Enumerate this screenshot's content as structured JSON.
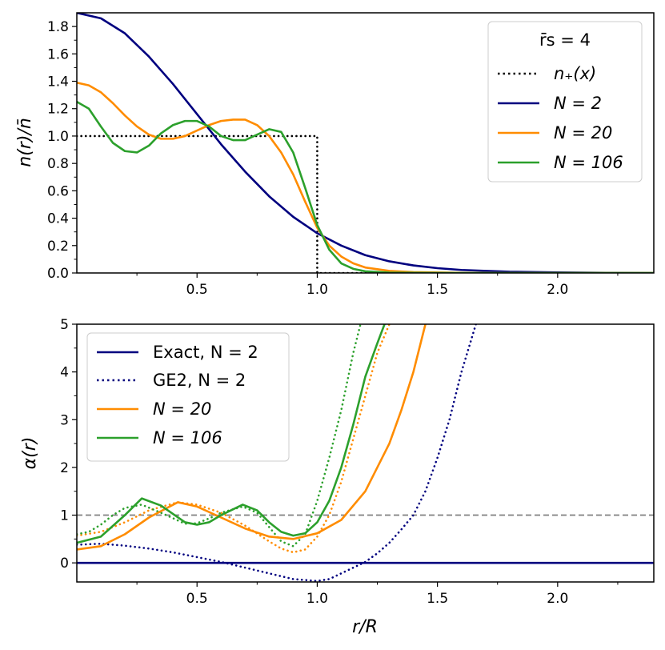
{
  "chart_data": [
    {
      "type": "line",
      "ylabel": "n(r)/n̄",
      "xlim": [
        0,
        2.4
      ],
      "ylim": [
        0,
        1.9
      ],
      "xticks": [
        "0.5",
        "1.0",
        "1.5",
        "2.0"
      ],
      "yticks": [
        "0.0",
        "0.2",
        "0.4",
        "0.6",
        "0.8",
        "1.0",
        "1.2",
        "1.4",
        "1.6",
        "1.8"
      ],
      "legend": {
        "title": "r̄s = 4",
        "placement": "top-right"
      },
      "series": [
        {
          "name": "n+(x)",
          "label": "n₊(x)",
          "color": "#000000",
          "style": "dotted",
          "x": [
            0,
            1.0,
            1.0,
            1.5
          ],
          "y": [
            1.0,
            1.0,
            0.0,
            0.0
          ]
        },
        {
          "name": "N = 2",
          "label": "N = 2",
          "color": "#00007f",
          "style": "solid",
          "x": [
            0,
            0.1,
            0.2,
            0.3,
            0.4,
            0.5,
            0.6,
            0.7,
            0.8,
            0.9,
            1.0,
            1.1,
            1.2,
            1.3,
            1.4,
            1.5,
            1.6,
            1.8,
            2.0,
            2.2,
            2.4
          ],
          "y": [
            1.9,
            1.86,
            1.75,
            1.58,
            1.38,
            1.16,
            0.94,
            0.74,
            0.56,
            0.41,
            0.29,
            0.2,
            0.13,
            0.085,
            0.055,
            0.035,
            0.022,
            0.009,
            0.004,
            0.001,
            0.0
          ]
        },
        {
          "name": "N = 20",
          "label": "N = 20",
          "color": "#ff8c00",
          "style": "solid",
          "x": [
            0,
            0.05,
            0.1,
            0.15,
            0.2,
            0.25,
            0.3,
            0.35,
            0.4,
            0.45,
            0.5,
            0.55,
            0.6,
            0.65,
            0.7,
            0.75,
            0.8,
            0.85,
            0.9,
            0.95,
            1.0,
            1.05,
            1.1,
            1.15,
            1.2,
            1.3,
            1.4,
            1.6,
            1.8,
            2.0,
            2.4
          ],
          "y": [
            1.39,
            1.37,
            1.32,
            1.24,
            1.15,
            1.07,
            1.01,
            0.98,
            0.98,
            1.0,
            1.04,
            1.08,
            1.11,
            1.12,
            1.12,
            1.08,
            1.0,
            0.88,
            0.72,
            0.52,
            0.33,
            0.2,
            0.12,
            0.07,
            0.04,
            0.015,
            0.006,
            0.001,
            0.0,
            0.0,
            0.0
          ]
        },
        {
          "name": "N = 106",
          "label": "N = 106",
          "color": "#2ca02c",
          "style": "solid",
          "x": [
            0,
            0.05,
            0.1,
            0.15,
            0.2,
            0.25,
            0.3,
            0.35,
            0.4,
            0.45,
            0.5,
            0.55,
            0.6,
            0.65,
            0.7,
            0.75,
            0.8,
            0.85,
            0.9,
            0.95,
            1.0,
            1.05,
            1.1,
            1.15,
            1.2,
            1.3,
            1.4,
            1.6,
            1.8,
            2.0,
            2.4
          ],
          "y": [
            1.25,
            1.2,
            1.07,
            0.95,
            0.89,
            0.88,
            0.93,
            1.02,
            1.08,
            1.11,
            1.11,
            1.07,
            1.0,
            0.97,
            0.97,
            1.01,
            1.05,
            1.03,
            0.88,
            0.62,
            0.35,
            0.17,
            0.07,
            0.03,
            0.012,
            0.003,
            0.001,
            0.0,
            0.0,
            0.0,
            0.0
          ]
        }
      ]
    },
    {
      "type": "line",
      "xlabel": "r/R",
      "ylabel": "α(r)",
      "xlim": [
        0,
        2.4
      ],
      "ylim": [
        -0.4,
        5
      ],
      "xticks": [
        "0.5",
        "1.0",
        "1.5",
        "2.0"
      ],
      "yticks": [
        "0",
        "1",
        "2",
        "3",
        "4",
        "5"
      ],
      "legend": {
        "placement": "top-left"
      },
      "reference_line": {
        "y": 1,
        "color": "#808080",
        "style": "dashed"
      },
      "series": [
        {
          "name": "Exact, N = 2",
          "label": "Exact, N = 2",
          "color": "#00007f",
          "style": "solid",
          "x": [
            0,
            2.4
          ],
          "y": [
            0,
            0
          ]
        },
        {
          "name": "GE2, N = 2",
          "label": "GE2, N = 2",
          "color": "#00007f",
          "style": "dotted",
          "x": [
            0,
            0.1,
            0.2,
            0.3,
            0.4,
            0.5,
            0.6,
            0.7,
            0.8,
            0.9,
            1.0,
            1.05,
            1.1,
            1.15,
            1.2,
            1.25,
            1.3,
            1.35,
            1.4,
            1.45,
            1.5,
            1.55,
            1.6,
            1.66
          ],
          "y": [
            0.38,
            0.4,
            0.36,
            0.3,
            0.22,
            0.12,
            0.02,
            -0.1,
            -0.22,
            -0.34,
            -0.38,
            -0.34,
            -0.22,
            -0.1,
            0.02,
            0.2,
            0.42,
            0.7,
            1.0,
            1.5,
            2.2,
            3.0,
            4.0,
            5.0
          ]
        },
        {
          "name": "GE2, N = 20",
          "label": "",
          "color": "#ff8c00",
          "style": "dotted",
          "x": [
            0,
            0.1,
            0.2,
            0.3,
            0.42,
            0.5,
            0.6,
            0.7,
            0.8,
            0.85,
            0.9,
            0.95,
            1.0,
            1.05,
            1.1,
            1.15,
            1.2,
            1.25,
            1.3
          ],
          "y": [
            0.57,
            0.65,
            0.85,
            1.1,
            1.27,
            1.22,
            1.05,
            0.78,
            0.45,
            0.3,
            0.22,
            0.28,
            0.55,
            1.0,
            1.7,
            2.6,
            3.5,
            4.4,
            5.0
          ]
        },
        {
          "name": "GE2, N = 106",
          "label": "",
          "color": "#2ca02c",
          "style": "dotted",
          "x": [
            0,
            0.05,
            0.1,
            0.15,
            0.2,
            0.27,
            0.35,
            0.45,
            0.5,
            0.55,
            0.6,
            0.69,
            0.75,
            0.8,
            0.85,
            0.9,
            0.95,
            1.0,
            1.05,
            1.1,
            1.15,
            1.18
          ],
          "y": [
            0.6,
            0.65,
            0.8,
            1.0,
            1.15,
            1.22,
            1.05,
            0.82,
            0.83,
            0.93,
            1.05,
            1.18,
            1.05,
            0.75,
            0.45,
            0.35,
            0.6,
            1.3,
            2.2,
            3.2,
            4.4,
            5.0
          ]
        },
        {
          "name": "N = 20",
          "label": "N = 20",
          "color": "#ff8c00",
          "style": "solid",
          "x": [
            0,
            0.1,
            0.2,
            0.3,
            0.42,
            0.5,
            0.6,
            0.7,
            0.8,
            0.9,
            1.0,
            1.1,
            1.2,
            1.3,
            1.35,
            1.4,
            1.45
          ],
          "y": [
            0.28,
            0.35,
            0.6,
            0.95,
            1.27,
            1.18,
            0.95,
            0.72,
            0.55,
            0.5,
            0.62,
            0.9,
            1.5,
            2.5,
            3.2,
            4.0,
            5.0
          ]
        },
        {
          "name": "N = 106",
          "label": "N = 106",
          "color": "#2ca02c",
          "style": "solid",
          "x": [
            0,
            0.1,
            0.2,
            0.27,
            0.35,
            0.45,
            0.5,
            0.55,
            0.6,
            0.69,
            0.75,
            0.8,
            0.85,
            0.9,
            0.95,
            1.0,
            1.05,
            1.1,
            1.15,
            1.2,
            1.25,
            1.28
          ],
          "y": [
            0.42,
            0.55,
            1.0,
            1.35,
            1.2,
            0.85,
            0.8,
            0.85,
            1.0,
            1.22,
            1.1,
            0.85,
            0.65,
            0.57,
            0.62,
            0.85,
            1.3,
            2.0,
            2.9,
            3.9,
            4.6,
            5.0
          ]
        }
      ]
    }
  ]
}
